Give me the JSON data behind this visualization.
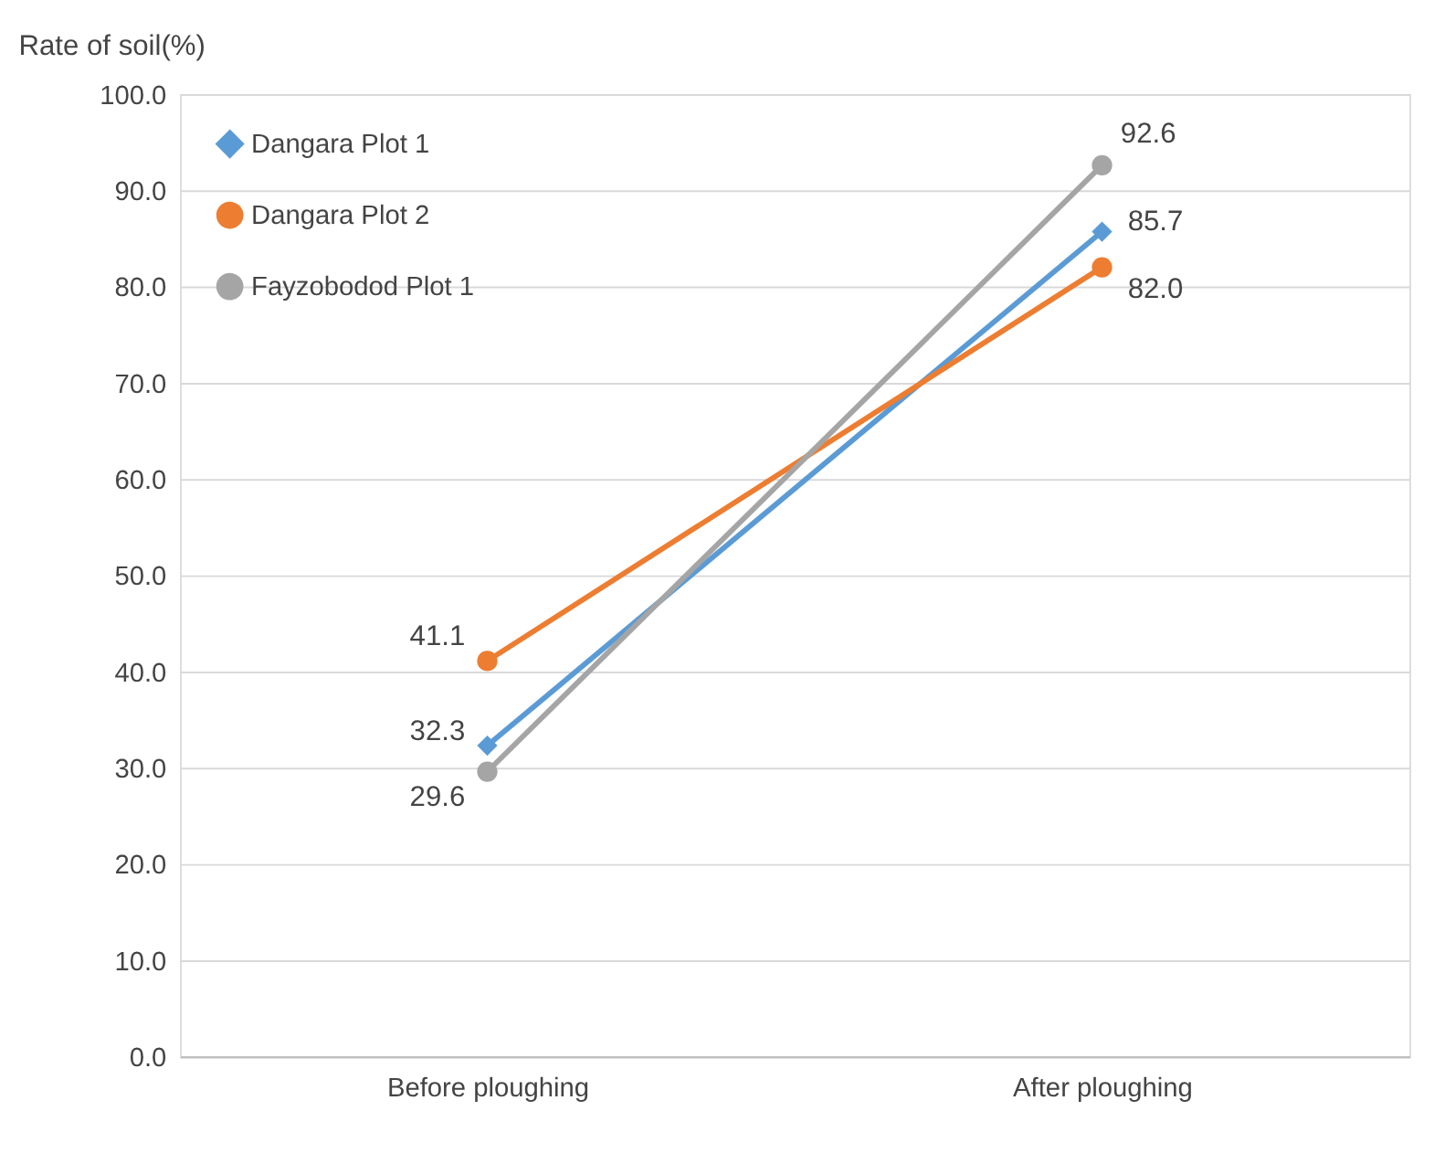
{
  "chart_data": {
    "type": "line",
    "ylabel": "Rate of soil(%)",
    "categories": [
      "Before ploughing",
      "After ploughing"
    ],
    "series": [
      {
        "name": "Dangara Plot 1",
        "color": "#5b9bd5",
        "values": [
          32.3,
          85.7
        ],
        "value_labels": [
          "32.3",
          "85.7"
        ],
        "marker": "diamond"
      },
      {
        "name": "Dangara Plot 2",
        "color": "#ed7d31",
        "values": [
          41.1,
          82.0
        ],
        "value_labels": [
          "41.1",
          "82.0"
        ],
        "marker": "circle"
      },
      {
        "name": "Fayzobodod Plot 1",
        "color": "#a5a5a5",
        "values": [
          29.6,
          92.6
        ],
        "value_labels": [
          "29.6",
          "92.6"
        ],
        "marker": "circle"
      }
    ],
    "ylim": [
      0,
      100
    ],
    "yticks": [
      {
        "value": 0,
        "label": "0.0"
      },
      {
        "value": 10,
        "label": "10.0"
      },
      {
        "value": 20,
        "label": "20.0"
      },
      {
        "value": 30,
        "label": "30.0"
      },
      {
        "value": 40,
        "label": "40.0"
      },
      {
        "value": 50,
        "label": "50.0"
      },
      {
        "value": 60,
        "label": "60.0"
      },
      {
        "value": 70,
        "label": "70.0"
      },
      {
        "value": 80,
        "label": "80.0"
      },
      {
        "value": 90,
        "label": "90.0"
      },
      {
        "value": 100,
        "label": "100.0"
      }
    ],
    "grid": "y",
    "legend": "top left",
    "line_style": "solid"
  }
}
